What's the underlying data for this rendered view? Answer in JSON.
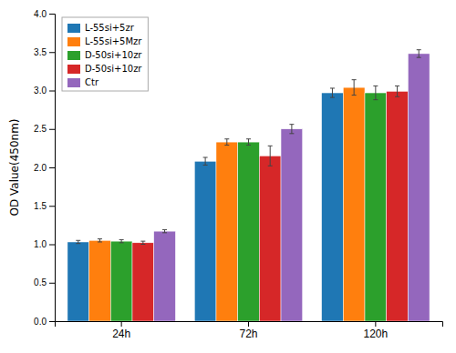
{
  "chart_data": {
    "type": "bar",
    "ylabel": "OD Value(450nm)",
    "categories": [
      "24h",
      "72h",
      "120h"
    ],
    "series": [
      {
        "name": "L-55si+5zr",
        "values": [
          1.03,
          2.08,
          2.97
        ],
        "errors": [
          0.02,
          0.05,
          0.06
        ]
      },
      {
        "name": "L-55si+5Mzr",
        "values": [
          1.05,
          2.33,
          3.04
        ],
        "errors": [
          0.02,
          0.04,
          0.1
        ]
      },
      {
        "name": "D-50si+10zr",
        "values": [
          1.04,
          2.33,
          2.97
        ],
        "errors": [
          0.02,
          0.04,
          0.09
        ]
      },
      {
        "name": "D-50si+10zr",
        "values": [
          1.02,
          2.15,
          2.99
        ],
        "errors": [
          0.02,
          0.13,
          0.07
        ]
      },
      {
        "name": "Ctr",
        "values": [
          1.17,
          2.5,
          3.48
        ],
        "errors": [
          0.02,
          0.06,
          0.05
        ]
      }
    ],
    "ylim": [
      0,
      4.0
    ],
    "yticks": [
      {
        "value": 0.0,
        "label": "0.0"
      },
      0.5,
      {
        "value": 1.0,
        "label": "1.0"
      },
      1.5,
      {
        "value": 2.0,
        "label": "2.0"
      },
      2.5,
      {
        "value": 3.0,
        "label": "3.0"
      },
      3.5,
      {
        "value": 4.0,
        "label": "4.0"
      }
    ],
    "grid": false,
    "legend": "upper left"
  }
}
